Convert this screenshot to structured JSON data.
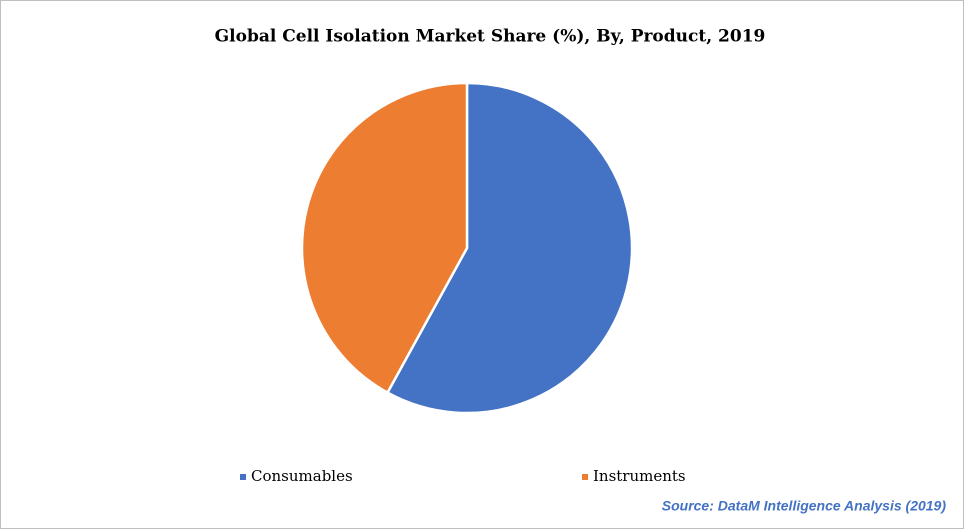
{
  "chart_data": {
    "type": "pie",
    "title": "Global Cell Isolation Market Share (%), By, Product, 2019",
    "categories": [
      "Consumables",
      "Instruments"
    ],
    "values": [
      58,
      42
    ],
    "colors": [
      "#4472c4",
      "#ed7d31"
    ],
    "legend": "bottom",
    "source": "Source: DataM Intelligence Analysis (2019)"
  }
}
